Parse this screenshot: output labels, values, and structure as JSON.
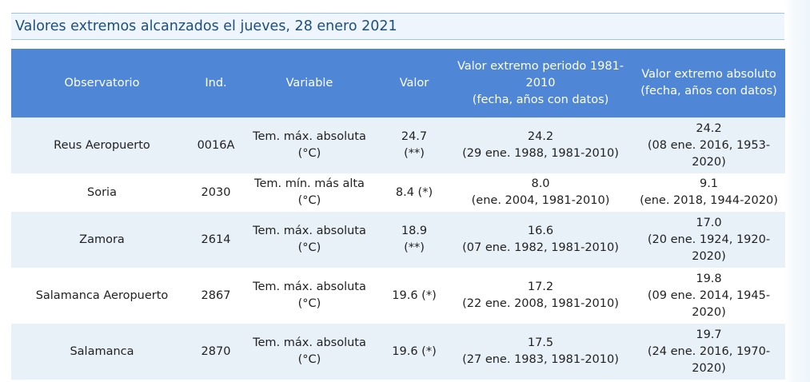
{
  "title": "Valores extremos alcanzados el jueves, 28 enero 2021",
  "colors": {
    "header_bg": "#4f87d6",
    "row_odd_bg": "#e8f1f8",
    "row_even_bg": "#ffffff",
    "title_color": "#1d4f7c",
    "title_border": "#9cc6e8"
  },
  "table": {
    "headers": {
      "observatorio": "Observatorio",
      "ind": "Ind.",
      "variable": "Variable",
      "valor": "Valor",
      "periodo_1": "Valor extremo periodo 1981-",
      "periodo_2": "2010",
      "periodo_3": "(fecha, años con datos)",
      "absoluto_1": "Valor extremo absoluto",
      "absoluto_2": "(fecha, años con datos)"
    },
    "rows": [
      {
        "observatorio": "Reus Aeropuerto",
        "ind": "0016A",
        "variable_1": "Tem. máx. absoluta",
        "variable_2": "(°C)",
        "valor_1": "24.7",
        "valor_2": "(**)",
        "periodo_1": "24.2",
        "periodo_2": "(29 ene. 1988, 1981-2010)",
        "absoluto_1": "24.2",
        "absoluto_2": "(08 ene. 2016, 1953-",
        "absoluto_3": "2020)"
      },
      {
        "observatorio": "Soria",
        "ind": "2030",
        "variable_1": "Tem. mín. más alta",
        "variable_2": "(°C)",
        "valor_1": "8.4 (*)",
        "valor_2": "",
        "periodo_1": "8.0",
        "periodo_2": "(ene. 2004, 1981-2010)",
        "absoluto_1": "9.1",
        "absoluto_2": "(ene. 2018, 1944-2020)",
        "absoluto_3": ""
      },
      {
        "observatorio": "Zamora",
        "ind": "2614",
        "variable_1": "Tem. máx. absoluta",
        "variable_2": "(°C)",
        "valor_1": "18.9",
        "valor_2": "(**)",
        "periodo_1": "16.6",
        "periodo_2": "(07 ene. 1982, 1981-2010)",
        "absoluto_1": "17.0",
        "absoluto_2": "(20 ene. 1924, 1920-",
        "absoluto_3": "2020)"
      },
      {
        "observatorio": "Salamanca Aeropuerto",
        "ind": "2867",
        "variable_1": "Tem. máx. absoluta",
        "variable_2": "(°C)",
        "valor_1": "19.6 (*)",
        "valor_2": "",
        "periodo_1": "17.2",
        "periodo_2": "(22 ene. 2008, 1981-2010)",
        "absoluto_1": "19.8",
        "absoluto_2": "(09 ene. 2014, 1945-",
        "absoluto_3": "2020)"
      },
      {
        "observatorio": "Salamanca",
        "ind": "2870",
        "variable_1": "Tem. máx. absoluta",
        "variable_2": "(°C)",
        "valor_1": "19.6 (*)",
        "valor_2": "",
        "periodo_1": "17.5",
        "periodo_2": "(27 ene. 1983, 1981-2010)",
        "absoluto_1": "19.7",
        "absoluto_2": "(24 ene. 2016, 1970-",
        "absoluto_3": "2020)"
      }
    ]
  }
}
